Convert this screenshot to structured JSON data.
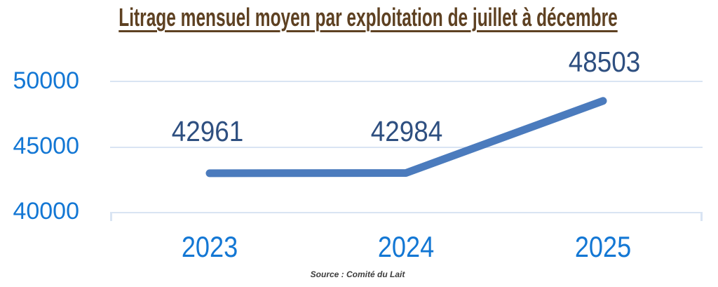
{
  "chart_data": {
    "type": "line",
    "title": "Litrage mensuel moyen par exploitation de juillet à décembre",
    "categories": [
      "2023",
      "2024",
      "2025"
    ],
    "values": [
      42961,
      42984,
      48503
    ],
    "yticks": [
      "50000",
      "45000",
      "40000"
    ],
    "ylim": [
      39350,
      51000
    ],
    "xlabel": "",
    "ylabel": "",
    "legend": "none",
    "grid": "horizontal-gridlines-only",
    "data_labels_visible": true,
    "source": "Source : Comité du Lait"
  },
  "colors": {
    "title": "#5e4122",
    "axis_labels": "#1377d4",
    "data_labels": "#2e4f80",
    "line": "#4b7bbd",
    "gridline": "#d9e4f3",
    "background": "#ffffff"
  }
}
